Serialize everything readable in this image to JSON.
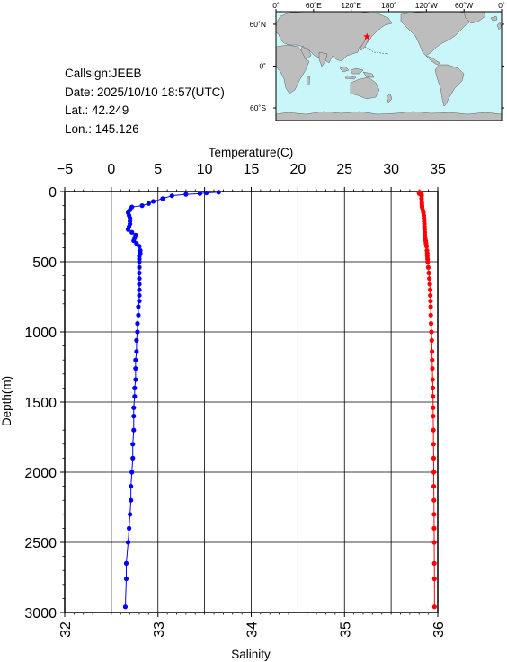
{
  "info": {
    "callsign": "Callsign:JEEB",
    "date": "Date:  2025/10/10 18:57(UTC)",
    "lat": "Lat.:  42.249",
    "lon": "Lon.:  145.126"
  },
  "map": {
    "lon_labels": [
      "0˚",
      "60˚E",
      "120˚E",
      "180˚",
      "120˚W",
      "60˚W",
      "0˚"
    ],
    "lat_labels": [
      "60˚N",
      "0˚",
      "60˚S"
    ],
    "station": {
      "lat": 42.249,
      "lon": 145.126
    },
    "colors": {
      "ocean": "#c9f6f9",
      "land": "#bdbdbd",
      "marker": "#ff0000"
    }
  },
  "chart_data": {
    "type": "line",
    "title": "",
    "ylabel": "Depth(m)",
    "ylim": [
      3000,
      0
    ],
    "yticks": [
      "0",
      "500",
      "1000",
      "1500",
      "2000",
      "2500",
      "3000"
    ],
    "x_top": {
      "label": "Temperature(C)",
      "lim": [
        -5,
        35
      ],
      "ticks": [
        "−5",
        "0",
        "5",
        "10",
        "15",
        "20",
        "25",
        "30",
        "35"
      ]
    },
    "x_bottom": {
      "label": "Salinity",
      "lim": [
        32,
        36
      ],
      "ticks": [
        "32",
        "33",
        "34",
        "35",
        "36"
      ]
    },
    "grid": true,
    "series": [
      {
        "axis": "temperature",
        "color": "#ff0000",
        "depth": [
          5,
          10,
          15,
          20,
          30,
          50,
          70,
          85,
          100,
          110,
          130,
          150,
          170,
          190,
          210,
          230,
          250,
          270,
          290,
          310,
          330,
          350,
          370,
          390,
          420,
          440,
          460,
          480,
          500,
          540,
          580,
          620,
          660,
          700,
          740,
          780,
          820,
          880,
          940,
          1000,
          1060,
          1140,
          1200,
          1260,
          1340,
          1400,
          1460,
          1540,
          1600,
          1700,
          1800,
          1900,
          2000,
          2100,
          2200,
          2300,
          2400,
          2500,
          2650,
          2760,
          2960
        ],
        "values": [
          33.05,
          33.0,
          33.02,
          33.25,
          33.27,
          33.26,
          33.28,
          33.29,
          33.3,
          33.31,
          33.38,
          33.46,
          33.5,
          33.52,
          33.54,
          33.56,
          33.57,
          33.58,
          33.6,
          33.6,
          33.65,
          33.7,
          33.74,
          33.8,
          33.84,
          33.87,
          33.88,
          33.9,
          33.92,
          33.98,
          34.04,
          34.1,
          34.14,
          34.18,
          34.2,
          34.22,
          34.24,
          34.25,
          34.28,
          34.32,
          34.35,
          34.38,
          34.4,
          34.42,
          34.45,
          34.47,
          34.49,
          34.5,
          34.51,
          34.53,
          34.54,
          34.56,
          34.57,
          34.57,
          34.59,
          34.6,
          34.61,
          34.62,
          34.63,
          34.64,
          34.65
        ]
      },
      {
        "axis": "salinity",
        "color": "#0000ff",
        "depth": [
          5,
          10,
          15,
          20,
          30,
          50,
          70,
          85,
          100,
          110,
          130,
          150,
          170,
          190,
          210,
          230,
          250,
          270,
          290,
          310,
          330,
          350,
          370,
          390,
          420,
          440,
          460,
          480,
          500,
          540,
          580,
          620,
          660,
          700,
          740,
          780,
          820,
          880,
          940,
          1000,
          1060,
          1140,
          1200,
          1260,
          1340,
          1400,
          1460,
          1540,
          1600,
          1700,
          1800,
          1900,
          2000,
          2100,
          2200,
          2300,
          2400,
          2500,
          2650,
          2760,
          2960
        ],
        "values": [
          33.65,
          33.52,
          33.45,
          33.3,
          33.15,
          33.05,
          32.95,
          32.9,
          32.83,
          32.72,
          32.7,
          32.68,
          32.69,
          32.7,
          32.7,
          32.7,
          32.69,
          32.68,
          32.72,
          32.76,
          32.75,
          32.74,
          32.77,
          32.8,
          32.81,
          32.81,
          32.8,
          32.8,
          32.8,
          32.8,
          32.8,
          32.8,
          32.8,
          32.8,
          32.8,
          32.8,
          32.79,
          32.79,
          32.78,
          32.78,
          32.77,
          32.77,
          32.76,
          32.76,
          32.76,
          32.75,
          32.75,
          32.74,
          32.74,
          32.74,
          32.73,
          32.73,
          32.72,
          32.71,
          32.71,
          32.7,
          32.69,
          32.68,
          32.66,
          32.66,
          32.65
        ]
      }
    ]
  }
}
